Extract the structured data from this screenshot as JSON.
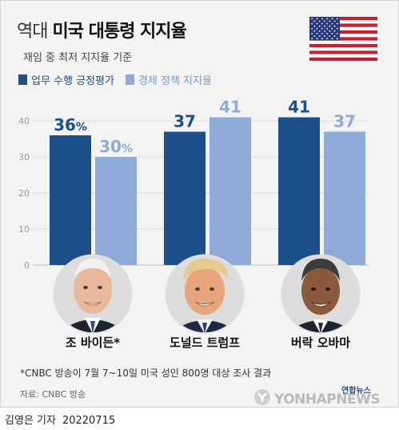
{
  "header": {
    "title_light": "역대",
    "title_bold": "미국 대통령 지지율",
    "subtitle": "재임 중 최저 지지율 기준"
  },
  "legend": [
    {
      "label": "업무 수행 긍정평가",
      "color": "#1d4f8b"
    },
    {
      "label": "경제 정책 지지율",
      "color": "#8eaad6"
    }
  ],
  "chart_data": {
    "type": "bar",
    "categories": [
      "조 바이든*",
      "도널드 트럼프",
      "버락 오바마"
    ],
    "series": [
      {
        "name": "업무 수행 긍정평가",
        "values": [
          36,
          37,
          41
        ],
        "labels": [
          "36%",
          "37",
          "41"
        ]
      },
      {
        "name": "경제 정책 지지율",
        "values": [
          30,
          41,
          37
        ],
        "labels": [
          "30%",
          "41",
          "37"
        ]
      }
    ],
    "yticks": [
      0,
      10,
      20,
      30,
      40
    ],
    "ylim": [
      0,
      45
    ],
    "grid": true
  },
  "icons": [
    "us-flag-icon",
    "biden-portrait-icon",
    "trump-portrait-icon",
    "obama-portrait-icon",
    "yonhap-logo-icon"
  ],
  "footer": {
    "note": "*CNBC 방송이 7월 7~10일 미국 성인 800명 대상 조사 결과",
    "source": "자료: CNBC 방송",
    "logo_kr": "연합뉴스",
    "logo_en": "YONHAPNEWS",
    "byline": "김영은 기자",
    "date": "20220715"
  }
}
